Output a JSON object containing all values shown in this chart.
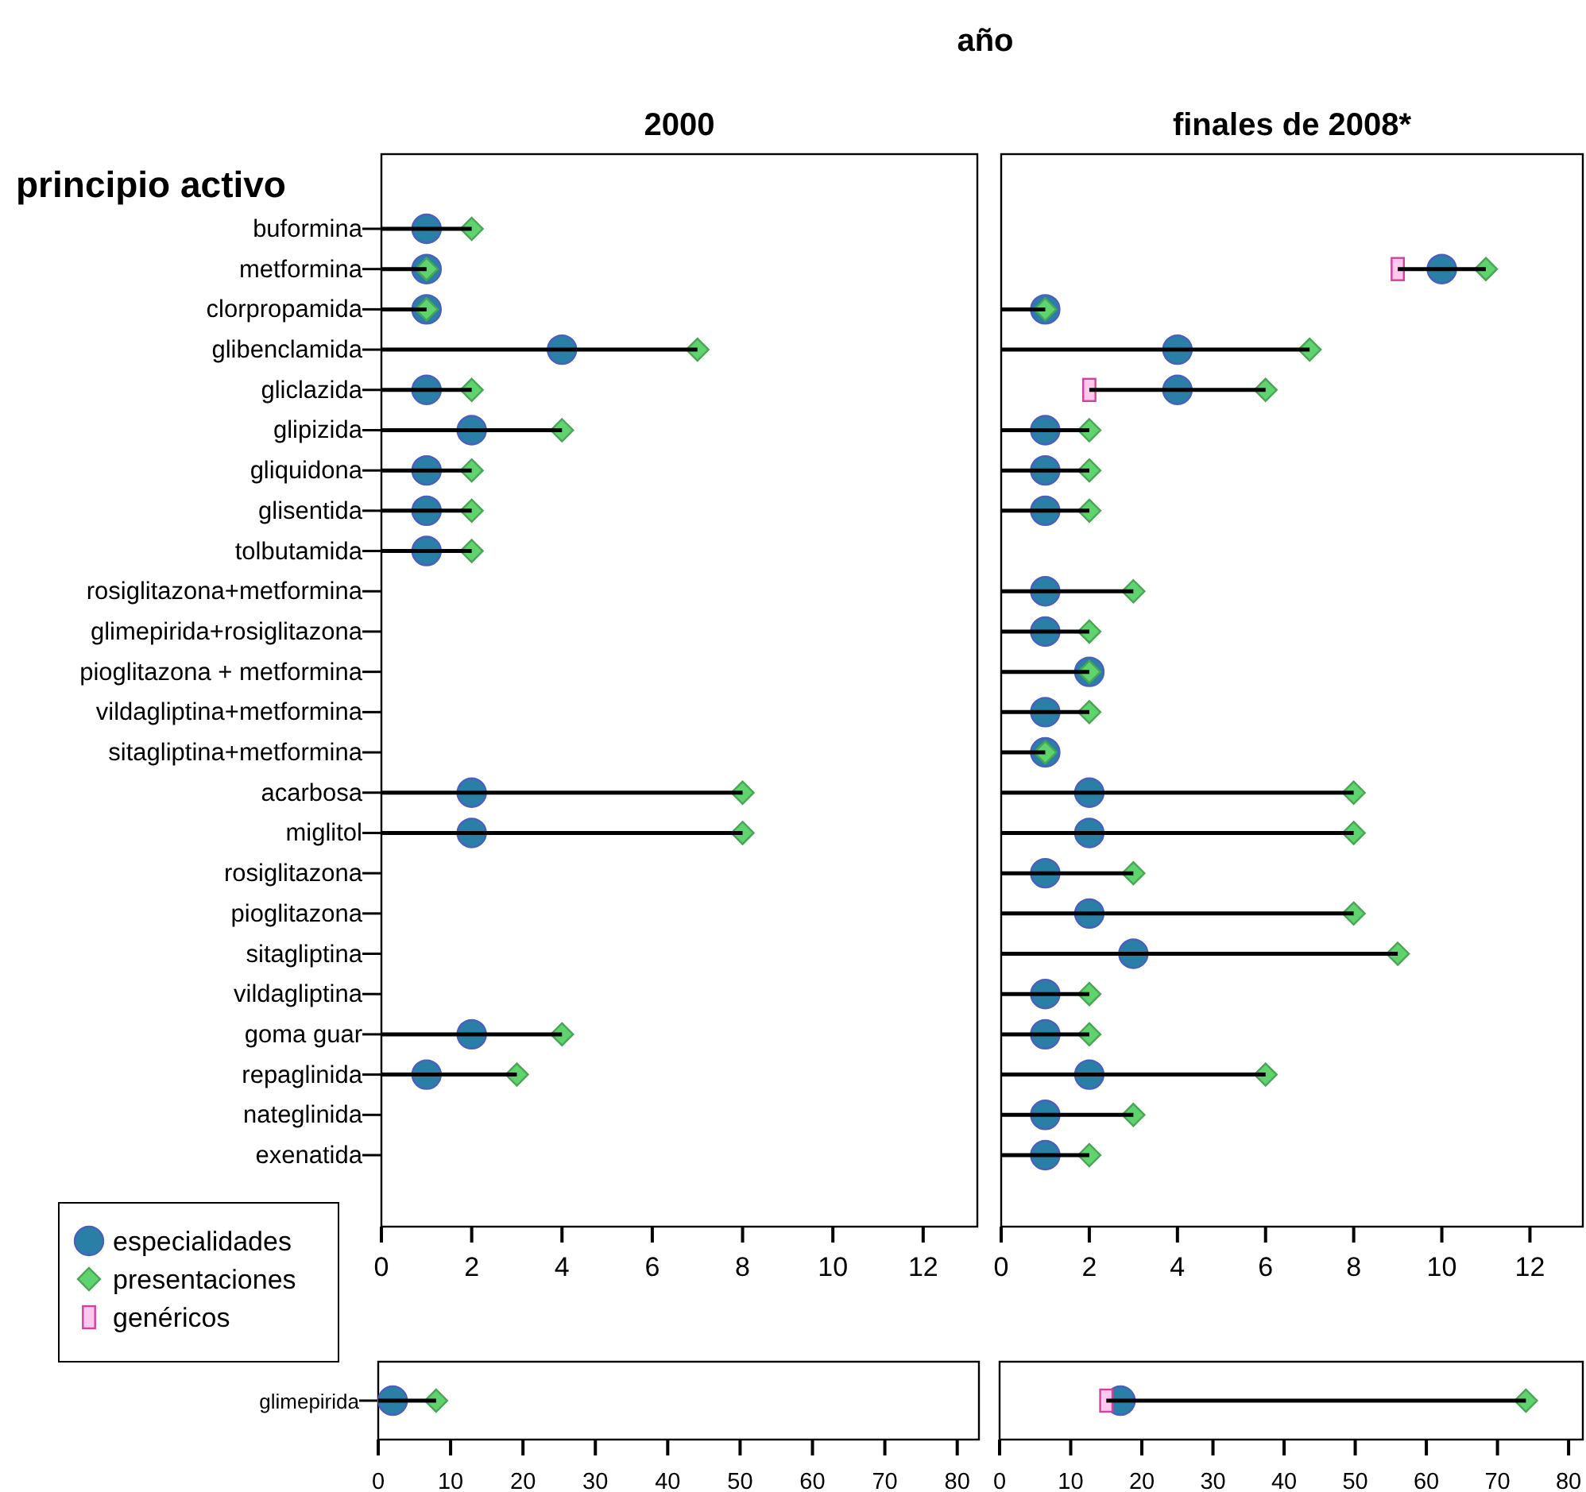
{
  "chart_data": [
    {
      "type": "lollipop",
      "title": "2000",
      "ylabel": "principio activo",
      "annotations": [
        "año"
      ],
      "legend": "bottom left",
      "orientation": "horizontal",
      "categories": [
        "buformina",
        "metformina",
        "clorpropamida",
        "glibenclamida",
        "gliclazida",
        "glipizida",
        "gliquidona",
        "glisentida",
        "tolbutamida",
        "rosiglitazona+metformina",
        "glimepirida+rosiglitazona",
        "pioglitazona + metformina",
        "vildagliptina+metformina",
        "sitagliptina+metformina",
        "acarbosa",
        "miglitol",
        "rosiglitazona",
        "pioglitazona",
        "sitagliptina",
        "vildagliptina",
        "goma guar",
        "repaglinida",
        "nateglinida",
        "exenatida"
      ],
      "xlim": [
        0,
        13.2
      ],
      "xticks": [
        0,
        2,
        4,
        6,
        8,
        10,
        12
      ],
      "series": [
        {
          "name": "especialidades",
          "type": "scatter",
          "marker": "circle",
          "color": "#2a7fa6",
          "values": [
            1,
            1,
            1,
            4,
            1,
            2,
            1,
            1,
            1,
            null,
            null,
            null,
            null,
            null,
            2,
            2,
            null,
            null,
            null,
            null,
            2,
            1,
            null,
            null
          ]
        },
        {
          "name": "presentaciones",
          "type": "lollipop",
          "marker": "diamond",
          "color": "#5fd46e",
          "values": [
            2,
            1,
            1,
            7,
            2,
            4,
            2,
            2,
            2,
            null,
            null,
            null,
            null,
            null,
            8,
            8,
            null,
            null,
            null,
            null,
            4,
            3,
            null,
            null
          ]
        },
        {
          "name": "genéricos",
          "type": "scatter",
          "marker": "square",
          "color": "#ffc8ee",
          "values": [
            null,
            null,
            null,
            null,
            null,
            null,
            null,
            null,
            null,
            null,
            null,
            null,
            null,
            null,
            null,
            null,
            null,
            null,
            null,
            null,
            null,
            null,
            null,
            null
          ]
        }
      ]
    },
    {
      "type": "lollipop",
      "title": "finales de 2008*",
      "orientation": "horizontal",
      "tick_labels": "x",
      "categories": [
        null,
        null,
        null,
        null,
        null,
        null,
        null,
        null,
        null,
        null,
        null,
        null,
        null,
        null,
        null,
        null,
        null,
        null,
        null,
        null,
        null,
        null,
        null,
        null
      ],
      "xlim": [
        0,
        13.2
      ],
      "xticks": [
        0,
        2,
        4,
        6,
        8,
        10,
        12
      ],
      "series": [
        {
          "type": "scatter",
          "marker": "circle",
          "color": "#2a7fa6",
          "values": [
            null,
            10,
            1,
            4,
            4,
            1,
            1,
            1,
            null,
            1,
            1,
            2,
            1,
            1,
            2,
            2,
            1,
            2,
            3,
            1,
            1,
            2,
            1,
            1
          ]
        },
        {
          "type": "lollipop",
          "marker": "diamond",
          "color": "#5fd46e",
          "values": [
            null,
            11,
            1,
            7,
            6,
            2,
            2,
            2,
            null,
            3,
            2,
            2,
            2,
            1,
            8,
            8,
            3,
            8,
            9,
            2,
            2,
            6,
            3,
            2
          ]
        },
        {
          "type": "scatter",
          "marker": "square",
          "color": "#ffc8ee",
          "values": [
            null,
            9,
            null,
            null,
            2,
            null,
            null,
            null,
            null,
            null,
            null,
            null,
            null,
            null,
            null,
            null,
            null,
            null,
            null,
            null,
            null,
            null,
            null,
            null
          ]
        }
      ]
    },
    {
      "type": "lollipop",
      "orientation": "horizontal",
      "categories": [
        "glimepirida"
      ],
      "xlim": [
        0,
        83
      ],
      "xticks": [
        0,
        10,
        20,
        30,
        40,
        50,
        60,
        70,
        80
      ],
      "series": [
        {
          "type": "scatter",
          "marker": "circle",
          "color": "#2a7fa6",
          "values": [
            2
          ]
        },
        {
          "type": "lollipop",
          "marker": "diamond",
          "color": "#5fd46e",
          "values": [
            8
          ]
        }
      ]
    },
    {
      "type": "lollipop",
      "orientation": "horizontal",
      "tick_labels": "x",
      "categories": [
        null
      ],
      "xlim": [
        0,
        82
      ],
      "xticks": [
        0,
        10,
        20,
        30,
        40,
        50,
        60,
        70,
        80
      ],
      "series": [
        {
          "type": "scatter",
          "marker": "circle",
          "color": "#2a7fa6",
          "values": [
            17
          ]
        },
        {
          "type": "lollipop",
          "marker": "diamond",
          "color": "#5fd46e",
          "values": [
            74
          ]
        },
        {
          "type": "scatter",
          "marker": "square",
          "color": "#ffc8ee",
          "values": [
            15
          ]
        }
      ]
    }
  ]
}
